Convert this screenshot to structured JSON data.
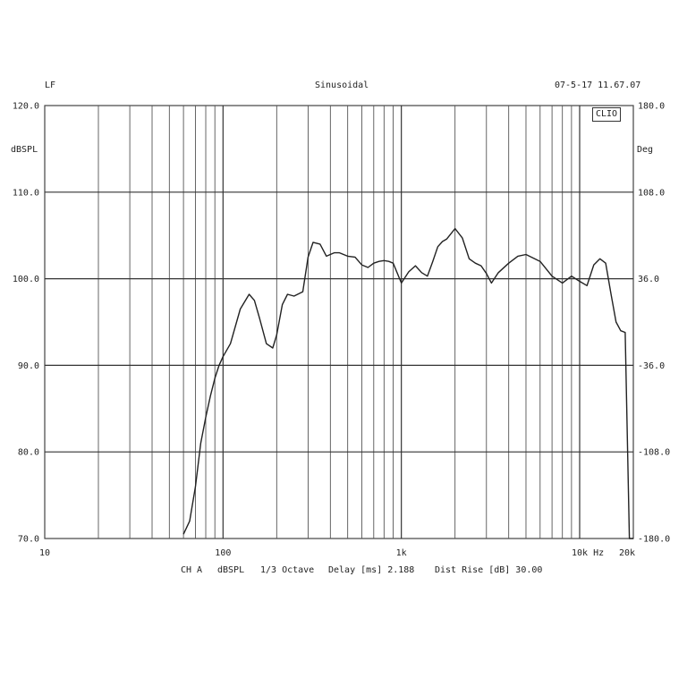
{
  "header": {
    "left": "LF",
    "center": "Sinusoidal",
    "right": "07-5-17 11.67.07"
  },
  "logo": "CLIO",
  "left_unit": "dBSPL",
  "right_unit": "Deg",
  "footer": {
    "channel": "CH A",
    "unit": "dBSPL",
    "smoothing": "1/3 Octave",
    "delay": "Delay [ms] 2.188",
    "dist_rise": "Dist Rise [dB] 30.00"
  },
  "chart_data": {
    "type": "line",
    "xscale": "log",
    "xlim": [
      10,
      20000
    ],
    "ylim": [
      70,
      120
    ],
    "y2lim": [
      -180,
      180
    ],
    "grid": true,
    "x_ticks": [
      {
        "v": 10,
        "label": "10"
      },
      {
        "v": 100,
        "label": "100"
      },
      {
        "v": 1000,
        "label": "1k"
      },
      {
        "v": 10000,
        "label": "10k Hz"
      },
      {
        "v": 20000,
        "label": "20k"
      }
    ],
    "y_ticks": [
      {
        "v": 120,
        "label": "120.0"
      },
      {
        "v": 110,
        "label": "110.0"
      },
      {
        "v": 100,
        "label": "100.0"
      },
      {
        "v": 90,
        "label": "90.0"
      },
      {
        "v": 80,
        "label": "80.0"
      },
      {
        "v": 70,
        "label": "70.0"
      }
    ],
    "y2_ticks": [
      {
        "v": 180,
        "label": "180.0"
      },
      {
        "v": 108,
        "label": "108.0"
      },
      {
        "v": 36,
        "label": "36.0"
      },
      {
        "v": -36,
        "label": "-36.0"
      },
      {
        "v": -108,
        "label": "-108.0"
      },
      {
        "v": -180,
        "label": "-180.0"
      }
    ],
    "series": [
      {
        "x": [
          60,
          65,
          70,
          75,
          80,
          85,
          90,
          95,
          100,
          110,
          125,
          140,
          150,
          160,
          175,
          190,
          200,
          215,
          230,
          250,
          280,
          300,
          320,
          350,
          380,
          420,
          450,
          500,
          550,
          600,
          650,
          700,
          750,
          800,
          850,
          900,
          1000,
          1100,
          1200,
          1300,
          1400,
          1500,
          1600,
          1700,
          1800,
          2000,
          2200,
          2400,
          2600,
          2800,
          3000,
          3200,
          3500,
          4000,
          4500,
          5000,
          6000,
          7000,
          8000,
          9000,
          10000,
          11000,
          12000,
          13000,
          14000,
          15000,
          16000,
          17000,
          18000,
          19000,
          20000
        ],
        "y": [
          70.5,
          72,
          76,
          81,
          84,
          86.5,
          88.5,
          90,
          91,
          92.5,
          96.5,
          98.2,
          97.5,
          95.5,
          92.5,
          92,
          93.5,
          97,
          98.2,
          98,
          98.5,
          102.5,
          104.2,
          104,
          102.6,
          103,
          103,
          102.6,
          102.5,
          101.6,
          101.3,
          101.8,
          102,
          102.1,
          102,
          101.8,
          99.5,
          100.8,
          101.5,
          100.7,
          100.3,
          102,
          103.7,
          104.3,
          104.6,
          105.8,
          104.7,
          102.3,
          101.8,
          101.5,
          100.6,
          99.5,
          100.7,
          101.8,
          102.6,
          102.8,
          102,
          100.3,
          99.5,
          100.3,
          99.7,
          99.2,
          101.6,
          102.3,
          101.8,
          98.2,
          95,
          94,
          93.8,
          70,
          70
        ]
      }
    ]
  }
}
